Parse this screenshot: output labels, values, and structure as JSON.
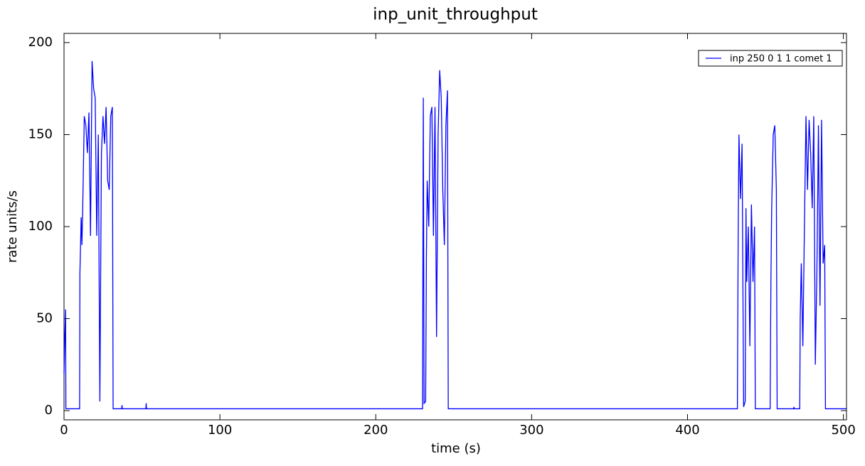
{
  "chart_data": {
    "type": "line",
    "title": "inp_unit_throughput",
    "x_label": "time (s)",
    "y_label": "rate units/s",
    "x": [
      0,
      0.5,
      1,
      1.2,
      10,
      10.2,
      11,
      11.5,
      12,
      13,
      14,
      15,
      16,
      17,
      18,
      19,
      20,
      21,
      22,
      23,
      24,
      25,
      26,
      27,
      28,
      29,
      30,
      31,
      31.5,
      37,
      37.2,
      37.4,
      52.5,
      52.7,
      52.9,
      230,
      230.5,
      231,
      232,
      232.5,
      233,
      234,
      235,
      236,
      237,
      238,
      239,
      240,
      241,
      242,
      243,
      244,
      245,
      246,
      246.5,
      432,
      432.5,
      433,
      434,
      435,
      436,
      437,
      437.5,
      438,
      439,
      440,
      441,
      442,
      443,
      443.5,
      453,
      453.5,
      454,
      455,
      456,
      457,
      457.5,
      468,
      468.3,
      468.5,
      472,
      472.3,
      473,
      474,
      475,
      476,
      477,
      478,
      479,
      480,
      481,
      482,
      483,
      484,
      485,
      486,
      487,
      488,
      488.5,
      502
    ],
    "series": [
      {
        "name": "inp 250 0 1 1 comet 1",
        "color": "#0000ff",
        "values": [
          20,
          40,
          55,
          1,
          1,
          75,
          105,
          90,
          110,
          160,
          155,
          140,
          162,
          95,
          190,
          175,
          170,
          95,
          150,
          5,
          140,
          160,
          145,
          165,
          125,
          120,
          160,
          165,
          1,
          1,
          3,
          1,
          1,
          4,
          1,
          1,
          170,
          4,
          5,
          85,
          125,
          100,
          160,
          165,
          95,
          165,
          40,
          150,
          185,
          170,
          120,
          90,
          155,
          174,
          1,
          1,
          95,
          150,
          115,
          145,
          2,
          5,
          110,
          70,
          100,
          35,
          112,
          70,
          100,
          1,
          1,
          70,
          110,
          150,
          155,
          120,
          1,
          1,
          2,
          1,
          1,
          50,
          80,
          35,
          100,
          160,
          120,
          158,
          140,
          110,
          160,
          25,
          75,
          155,
          57,
          158,
          80,
          90,
          1,
          1
        ]
      }
    ],
    "xlim": [
      0,
      502
    ],
    "ylim": [
      -5,
      205
    ],
    "xticks": [
      0,
      100,
      200,
      300,
      400,
      500
    ],
    "yticks": [
      0,
      50,
      100,
      150,
      200
    ],
    "legend": "upper right"
  }
}
